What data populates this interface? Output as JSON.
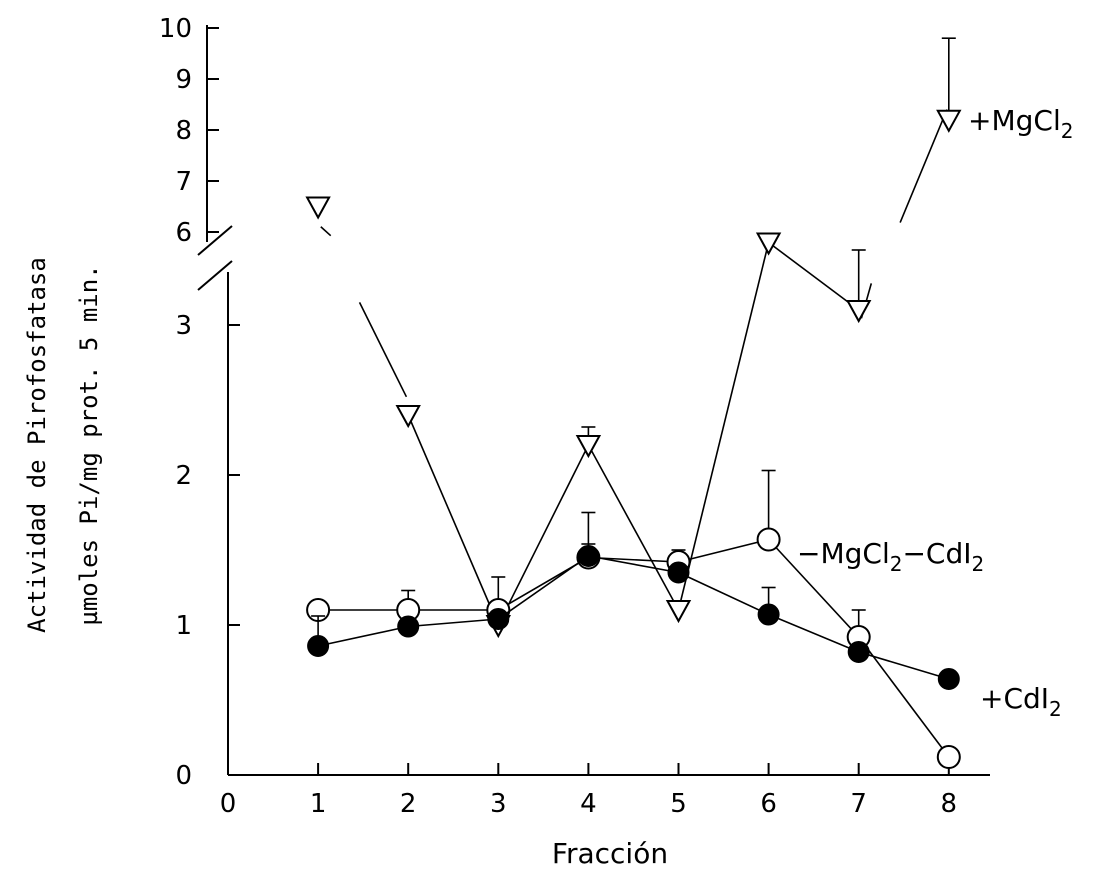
{
  "chart_data": {
    "type": "line",
    "title": "",
    "xlabel": "Fracción",
    "ylabel_lines": [
      "Actividad de Pirofosfatasa",
      "µmoles Pi/mg prot. 5 min."
    ],
    "x_ticks": [
      "0",
      "1",
      "2",
      "3",
      "4",
      "5",
      "6",
      "7",
      "8"
    ],
    "xlim": [
      0,
      8.5
    ],
    "y_ticks_lower": [
      "0",
      "1",
      "2",
      "3"
    ],
    "y_ticks_upper": [
      "6",
      "7",
      "8",
      "9",
      "10"
    ],
    "y_axis_break": true,
    "ylim_lower": [
      0,
      3.5
    ],
    "ylim_upper": [
      5.8,
      10
    ],
    "x": [
      1,
      2,
      3,
      4,
      5,
      6,
      7,
      8
    ],
    "series": [
      {
        "name": "+MgCl2",
        "marker": "open-triangle-down",
        "values": [
          6.5,
          2.4,
          1.0,
          2.2,
          1.1,
          3.55,
          3.1,
          8.2
        ],
        "errors": [
          null,
          null,
          null,
          0.12,
          null,
          null,
          0.4,
          1.6
        ],
        "segments": [
          {
            "from": 0,
            "to": 1,
            "drawn": "partial"
          },
          {
            "from": 1,
            "to": 2,
            "drawn": "full"
          },
          {
            "from": 2,
            "to": 3,
            "drawn": "full"
          },
          {
            "from": 3,
            "to": 4,
            "drawn": "full"
          },
          {
            "from": 4,
            "to": 5,
            "drawn": "full"
          },
          {
            "from": 5,
            "to": 6,
            "drawn": "full"
          },
          {
            "from": 6,
            "to": 7,
            "drawn": "partial"
          }
        ]
      },
      {
        "name": "-MgCl2-CdI2",
        "marker": "open-circle",
        "values": [
          1.1,
          1.1,
          1.1,
          1.45,
          1.42,
          1.57,
          0.92,
          0.12
        ],
        "errors": [
          null,
          0.13,
          0.22,
          0.3,
          0.08,
          0.46,
          0.18,
          null
        ]
      },
      {
        "name": "+CdI2",
        "marker": "filled-circle",
        "values": [
          0.86,
          0.99,
          1.04,
          1.46,
          1.35,
          1.07,
          0.82,
          0.64
        ],
        "errors": [
          0.2,
          null,
          null,
          0.08,
          null,
          0.18,
          null,
          null
        ]
      }
    ],
    "legend_labels": [
      {
        "series": "+MgCl2",
        "main": "+MgCl",
        "sub": "2",
        "rest": ""
      },
      {
        "series": "-MgCl2-CdI2",
        "main": "−MgCl",
        "sub": "2",
        "rest": "−CdI",
        "sub2": "2"
      },
      {
        "series": "+CdI2",
        "main": "+CdI",
        "sub": "2",
        "rest": ""
      }
    ],
    "legend_placement": "inline-right"
  }
}
